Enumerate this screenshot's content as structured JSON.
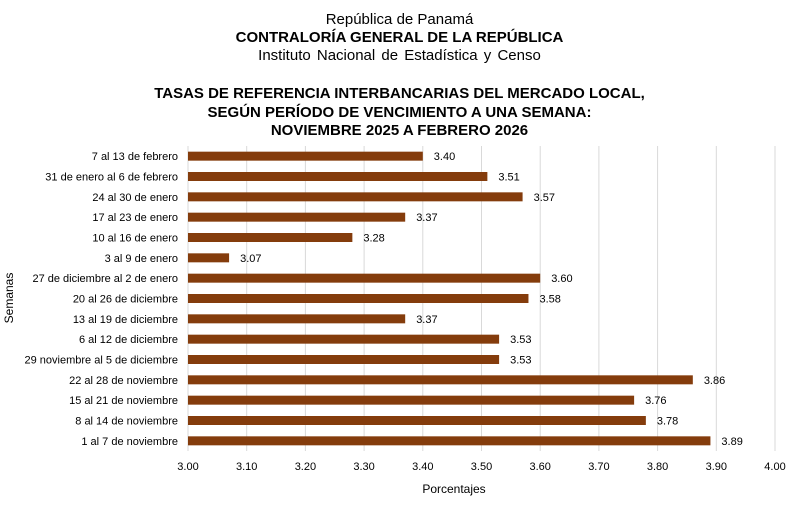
{
  "header": {
    "line1": "República de Panamá",
    "line2": "CONTRALORÍA GENERAL DE LA REPÚBLICA",
    "line3": "Instituto Nacional de Estadística y Censo"
  },
  "chart_data": {
    "type": "bar",
    "orientation": "horizontal",
    "title": [
      "TASAS DE REFERENCIA INTERBANCARIAS DEL MERCADO LOCAL,",
      "SEGÚN PERÍODO DE VENCIMIENTO A UNA SEMANA:",
      "NOVIEMBRE 2025 A FEBRERO 2026"
    ],
    "xlabel": "Porcentajes",
    "ylabel": "Semanas",
    "xlim": [
      3.0,
      4.0
    ],
    "xticks": [
      "3.00",
      "3.10",
      "3.20",
      "3.30",
      "3.40",
      "3.50",
      "3.60",
      "3.70",
      "3.80",
      "3.90",
      "4.00"
    ],
    "grid": true,
    "bar_color": "#843C0C",
    "categories": [
      "7 al 13 de febrero",
      "31 de enero al 6 de febrero",
      "24 al 30 de enero",
      "17 al 23 de enero",
      "10 al 16 de enero",
      "3 al 9 de enero",
      "27 de diciembre al 2 de enero",
      "20 al 26 de diciembre",
      "13 al 19 de diciembre",
      "6 al 12 de diciembre",
      "29 noviembre al 5 de diciembre",
      "22 al 28 de noviembre",
      "15 al 21 de noviembre",
      "8 al 14 de noviembre",
      "1 al 7 de noviembre"
    ],
    "values": [
      3.4,
      3.51,
      3.57,
      3.37,
      3.28,
      3.07,
      3.6,
      3.58,
      3.37,
      3.53,
      3.53,
      3.86,
      3.76,
      3.78,
      3.89
    ],
    "data_labels": [
      "3.40",
      "3.51",
      "3.57",
      "3.37",
      "3.28",
      "3.07",
      "3.60",
      "3.58",
      "3.37",
      "3.53",
      "3.53",
      "3.86",
      "3.76",
      "3.78",
      "3.89"
    ]
  }
}
